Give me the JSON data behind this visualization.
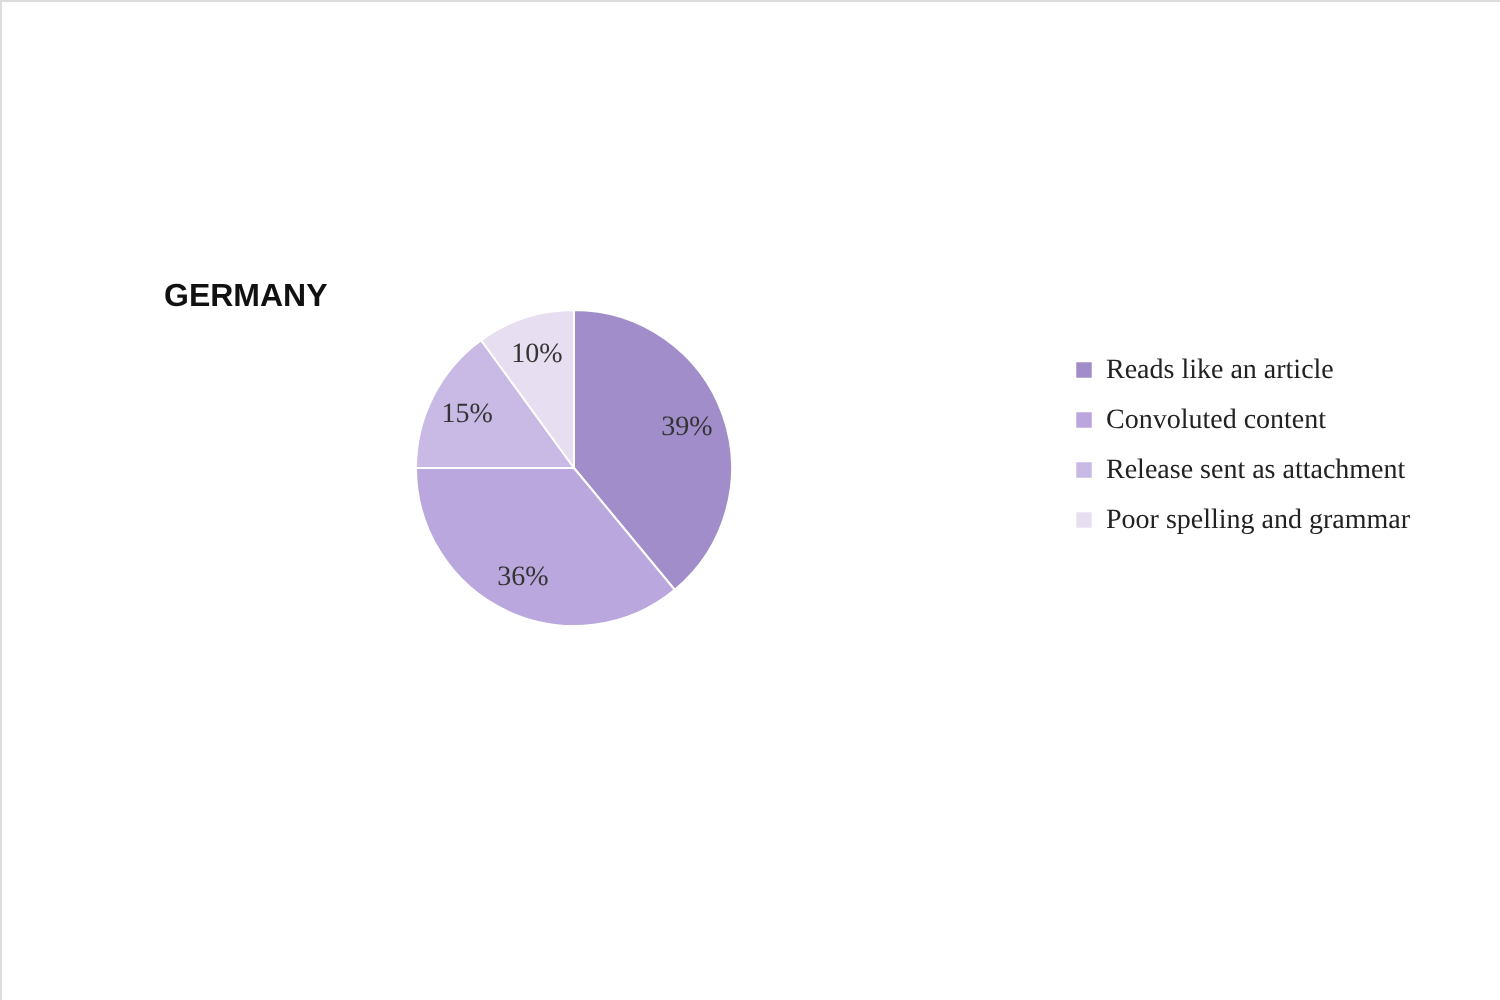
{
  "chart_data": {
    "type": "pie",
    "title": "GERMANY",
    "categories": [
      "Reads like an article",
      "Convoluted content",
      "Release sent as attachment",
      "Poor spelling and grammar"
    ],
    "values": [
      39,
      36,
      15,
      10
    ],
    "colors": [
      "#a18dc9",
      "#b9a7de",
      "#c9bae5",
      "#e7dff1"
    ],
    "value_labels": [
      "39%",
      "36%",
      "15%",
      "10%"
    ],
    "legend": "right"
  }
}
